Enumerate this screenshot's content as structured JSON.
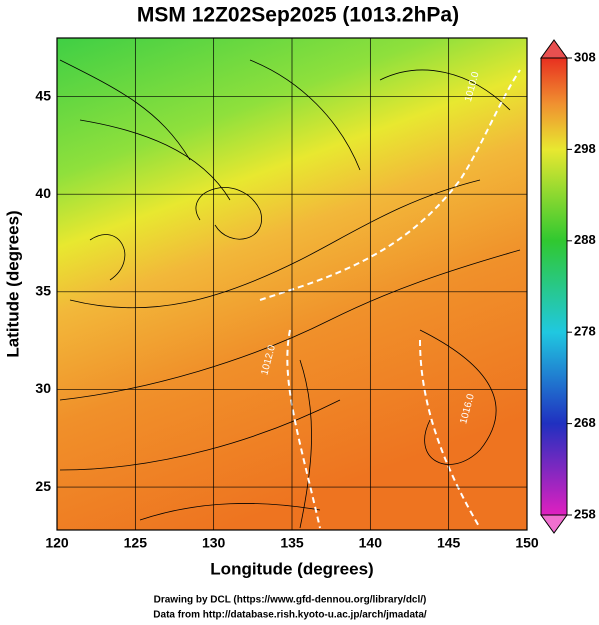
{
  "title": "MSM 12Z02Sep2025 (1013.2hPa)",
  "x_axis": {
    "label": "Longitude (degrees)",
    "range": [
      120,
      150
    ],
    "ticks": [
      120,
      125,
      130,
      135,
      140,
      145,
      150
    ]
  },
  "y_axis": {
    "label": "Latitude  (degrees)",
    "range": [
      22.8,
      48
    ],
    "ticks": [
      25,
      30,
      35,
      40,
      45
    ]
  },
  "colorbar": {
    "range": [
      258,
      308
    ],
    "ticks": [
      258,
      268,
      278,
      288,
      298,
      308
    ]
  },
  "contour_labels": [
    {
      "text": "1012.0",
      "lon": 133.5,
      "lat": 31.5
    },
    {
      "text": "1016.0",
      "lon": 146.2,
      "lat": 29.0
    },
    {
      "text": "1010.0",
      "lon": 146.5,
      "lat": 45.5
    }
  ],
  "credits": [
    "Drawing by DCL (https://www.gfd-dennou.org/library/dcl/)",
    "Data from http://database.rish.kyoto-u.ac.jp/arch/jmadata/"
  ]
}
